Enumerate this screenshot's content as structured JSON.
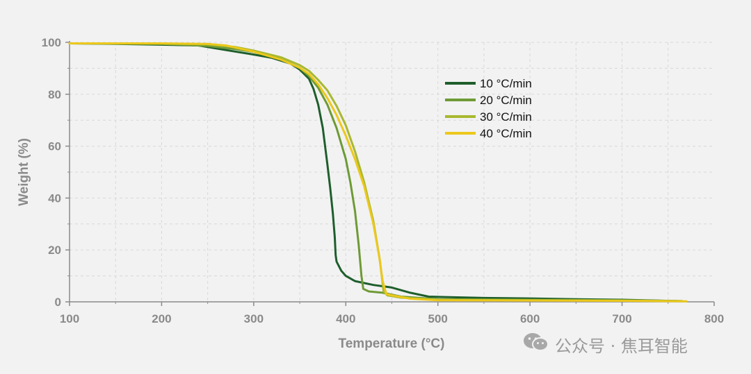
{
  "chart_data": {
    "type": "line",
    "title": "",
    "xlabel": "Temperature (°C)",
    "ylabel": "Weight (%)",
    "xlim": [
      100,
      800
    ],
    "ylim": [
      0,
      100
    ],
    "x_ticks": [
      100,
      200,
      300,
      400,
      500,
      600,
      700,
      800
    ],
    "y_ticks": [
      0,
      20,
      40,
      60,
      80,
      100
    ],
    "grid": true,
    "legend_position": "top-center",
    "series": [
      {
        "name": "10 °C/min",
        "color": "#1e5e2c",
        "points": [
          [
            100,
            99.6
          ],
          [
            150,
            99.4
          ],
          [
            200,
            99.1
          ],
          [
            240,
            98.8
          ],
          [
            270,
            97.0
          ],
          [
            300,
            95.3
          ],
          [
            320,
            94.0
          ],
          [
            340,
            91.8
          ],
          [
            350,
            89.5
          ],
          [
            360,
            86.0
          ],
          [
            365,
            82.0
          ],
          [
            370,
            76.0
          ],
          [
            375,
            67.0
          ],
          [
            380,
            53.0
          ],
          [
            383,
            44.0
          ],
          [
            386,
            34.0
          ],
          [
            388,
            25.0
          ],
          [
            389,
            18.0
          ],
          [
            390,
            15.5
          ],
          [
            395,
            12.0
          ],
          [
            400,
            10.0
          ],
          [
            410,
            8.0
          ],
          [
            430,
            6.5
          ],
          [
            450,
            5.5
          ],
          [
            470,
            3.5
          ],
          [
            490,
            2.0
          ],
          [
            550,
            1.5
          ],
          [
            600,
            1.3
          ],
          [
            650,
            1.0
          ],
          [
            700,
            0.8
          ],
          [
            760,
            0.3
          ]
        ]
      },
      {
        "name": "20 °C/min",
        "color": "#6e9a35",
        "points": [
          [
            100,
            99.6
          ],
          [
            200,
            99.4
          ],
          [
            250,
            98.6
          ],
          [
            280,
            97.4
          ],
          [
            300,
            96.3
          ],
          [
            330,
            93.4
          ],
          [
            350,
            90.2
          ],
          [
            360,
            87.0
          ],
          [
            370,
            82.5
          ],
          [
            380,
            76.0
          ],
          [
            390,
            67.0
          ],
          [
            400,
            55.0
          ],
          [
            405,
            46.0
          ],
          [
            410,
            35.0
          ],
          [
            414,
            22.0
          ],
          [
            417,
            10.0
          ],
          [
            419,
            5.0
          ],
          [
            425,
            4.0
          ],
          [
            440,
            3.5
          ],
          [
            460,
            2.0
          ],
          [
            500,
            1.0
          ],
          [
            600,
            0.8
          ],
          [
            700,
            0.6
          ],
          [
            765,
            0.3
          ]
        ]
      },
      {
        "name": "30 °C/min",
        "color": "#a9b830",
        "points": [
          [
            100,
            99.6
          ],
          [
            200,
            99.5
          ],
          [
            250,
            99.2
          ],
          [
            280,
            98.2
          ],
          [
            300,
            96.8
          ],
          [
            330,
            94.2
          ],
          [
            350,
            91.2
          ],
          [
            360,
            89.0
          ],
          [
            370,
            85.5
          ],
          [
            380,
            81.5
          ],
          [
            390,
            75.5
          ],
          [
            400,
            68.0
          ],
          [
            410,
            58.0
          ],
          [
            420,
            46.0
          ],
          [
            430,
            31.0
          ],
          [
            437,
            16.0
          ],
          [
            441,
            4.0
          ],
          [
            445,
            2.5
          ],
          [
            460,
            1.6
          ],
          [
            500,
            0.8
          ],
          [
            600,
            0.6
          ],
          [
            700,
            0.5
          ],
          [
            765,
            0.3
          ]
        ]
      },
      {
        "name": "40 °C/min",
        "color": "#ecc81c",
        "points": [
          [
            100,
            99.6
          ],
          [
            200,
            99.6
          ],
          [
            250,
            99.4
          ],
          [
            270,
            98.8
          ],
          [
            300,
            96.4
          ],
          [
            330,
            93.3
          ],
          [
            350,
            90.2
          ],
          [
            360,
            87.8
          ],
          [
            370,
            83.8
          ],
          [
            380,
            78.5
          ],
          [
            390,
            72.0
          ],
          [
            400,
            64.0
          ],
          [
            410,
            55.0
          ],
          [
            420,
            44.5
          ],
          [
            430,
            30.0
          ],
          [
            436,
            18.0
          ],
          [
            440,
            8.0
          ],
          [
            444,
            3.0
          ],
          [
            450,
            2.5
          ],
          [
            470,
            1.2
          ],
          [
            500,
            0.6
          ],
          [
            600,
            0.5
          ],
          [
            700,
            0.4
          ],
          [
            770,
            0.2
          ]
        ]
      }
    ]
  },
  "watermark": {
    "icon": "wechat-icon",
    "text": "公众号 · 焦耳智能"
  }
}
